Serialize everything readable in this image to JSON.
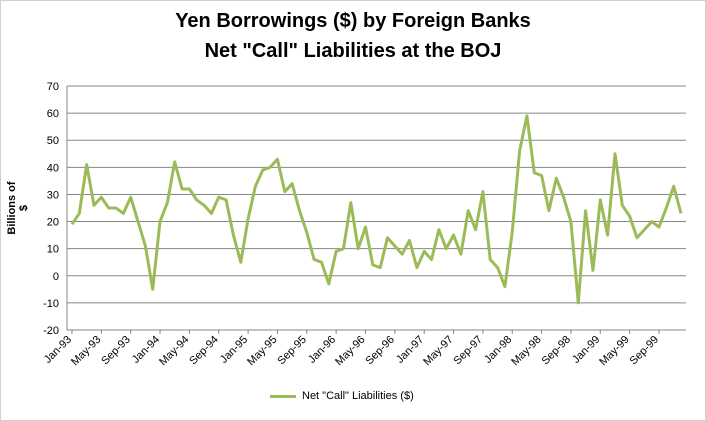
{
  "chart_data": {
    "type": "line",
    "title": "Yen Borrowings ($) by Foreign Banks",
    "subtitle": "Net \"Call\" Liabilities at the BOJ",
    "xlabel": "",
    "ylabel": "Billions of $",
    "ylim": [
      -20,
      70
    ],
    "yticks": [
      -20,
      -10,
      0,
      10,
      20,
      30,
      40,
      50,
      60,
      70
    ],
    "grid": true,
    "legend_position": "bottom",
    "series_color": "#9bbb59",
    "xtick_labels": [
      "Jan-93",
      "May-93",
      "Sep-93",
      "Jan-94",
      "May-94",
      "Sep-94",
      "Jan-95",
      "May-95",
      "Sep-95",
      "Jan-96",
      "May-96",
      "Sep-96",
      "Jan-97",
      "May-97",
      "Sep-97",
      "Jan-98",
      "May-98",
      "Sep-98",
      "Jan-99",
      "May-99",
      "Sep-99"
    ],
    "series": [
      {
        "name": "Net \"Call\" Liabilities ($)",
        "start": "Jan-93",
        "frequency": "monthly",
        "values": [
          19,
          23,
          41,
          26,
          29,
          25,
          25,
          23,
          29,
          20,
          11,
          -5,
          20,
          27,
          42,
          32,
          32,
          28,
          26,
          23,
          29,
          28,
          15,
          5,
          21,
          33,
          39,
          40,
          43,
          31,
          34,
          24,
          16,
          6,
          5,
          -3,
          9,
          10,
          27,
          10,
          18,
          4,
          3,
          14,
          11,
          8,
          13,
          3,
          9,
          6,
          17,
          10,
          15,
          8,
          24,
          17,
          31,
          6,
          3,
          -4,
          16,
          46,
          59,
          38,
          37,
          24,
          36,
          29,
          20,
          -10,
          24,
          2,
          28,
          15,
          45,
          26,
          22,
          14,
          17,
          20,
          18,
          25,
          33,
          23
        ]
      }
    ]
  }
}
